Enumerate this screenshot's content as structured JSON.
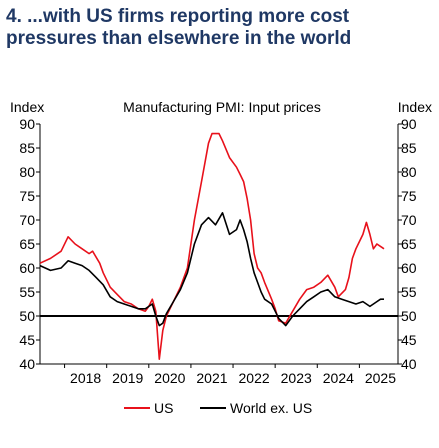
{
  "title_line1": "4. ...with US firms reporting more cost",
  "title_line2": "pressures than elsewhere in the world",
  "chart_data": {
    "type": "line",
    "title": "Manufacturing PMI: Input prices",
    "ylabel_left": "Index",
    "ylabel_right": "Index",
    "ylim": [
      40,
      90
    ],
    "yticks": [
      40,
      45,
      50,
      55,
      60,
      65,
      70,
      75,
      80,
      85,
      90
    ],
    "xlim": [
      "2017-06",
      "2025-12"
    ],
    "xticks": [
      "2018",
      "2019",
      "2020",
      "2021",
      "2022",
      "2023",
      "2024",
      "2025"
    ],
    "reference_line": 50,
    "grid": false,
    "legend_position": "bottom-center",
    "series": [
      {
        "name": "US",
        "color": "#e8111b",
        "points": [
          [
            "2017-06",
            61
          ],
          [
            "2017-09",
            62
          ],
          [
            "2017-12",
            63.5
          ],
          [
            "2018-02",
            66.5
          ],
          [
            "2018-04",
            65
          ],
          [
            "2018-06",
            64
          ],
          [
            "2018-08",
            63
          ],
          [
            "2018-09",
            63.5
          ],
          [
            "2018-11",
            61
          ],
          [
            "2018-12",
            59
          ],
          [
            "2019-02",
            56
          ],
          [
            "2019-04",
            54.5
          ],
          [
            "2019-06",
            53
          ],
          [
            "2019-08",
            52.5
          ],
          [
            "2019-10",
            51.5
          ],
          [
            "2019-12",
            51
          ],
          [
            "2020-01",
            52
          ],
          [
            "2020-02",
            53.5
          ],
          [
            "2020-03",
            51
          ],
          [
            "2020-04",
            41
          ],
          [
            "2020-05",
            47
          ],
          [
            "2020-06",
            50
          ],
          [
            "2020-08",
            53
          ],
          [
            "2020-10",
            56
          ],
          [
            "2020-12",
            60
          ],
          [
            "2021-02",
            70
          ],
          [
            "2021-04",
            78
          ],
          [
            "2021-06",
            86
          ],
          [
            "2021-07",
            88
          ],
          [
            "2021-09",
            88
          ],
          [
            "2021-10",
            86.5
          ],
          [
            "2021-12",
            83
          ],
          [
            "2022-02",
            81
          ],
          [
            "2022-03",
            79.5
          ],
          [
            "2022-04",
            78
          ],
          [
            "2022-05",
            74.5
          ],
          [
            "2022-06",
            70
          ],
          [
            "2022-07",
            63
          ],
          [
            "2022-08",
            60
          ],
          [
            "2022-09",
            59
          ],
          [
            "2022-10",
            57
          ],
          [
            "2022-12",
            53.5
          ],
          [
            "2023-01",
            51.5
          ],
          [
            "2023-02",
            49
          ],
          [
            "2023-04",
            48.5
          ],
          [
            "2023-06",
            51
          ],
          [
            "2023-08",
            53.5
          ],
          [
            "2023-10",
            55.5
          ],
          [
            "2023-12",
            56
          ],
          [
            "2024-02",
            57
          ],
          [
            "2024-04",
            58.5
          ],
          [
            "2024-06",
            56
          ],
          [
            "2024-07",
            54
          ],
          [
            "2024-09",
            55.5
          ],
          [
            "2024-10",
            58
          ],
          [
            "2024-11",
            62
          ],
          [
            "2024-12",
            64
          ],
          [
            "2025-01",
            65.5
          ],
          [
            "2025-02",
            67
          ],
          [
            "2025-03",
            69.5
          ],
          [
            "2025-04",
            67
          ],
          [
            "2025-05",
            64
          ],
          [
            "2025-06",
            65
          ],
          [
            "2025-07",
            64.5
          ],
          [
            "2025-08",
            64
          ]
        ]
      },
      {
        "name": "World ex. US",
        "color": "#000000",
        "points": [
          [
            "2017-06",
            60.5
          ],
          [
            "2017-09",
            59.5
          ],
          [
            "2017-12",
            60
          ],
          [
            "2018-02",
            61.5
          ],
          [
            "2018-04",
            61
          ],
          [
            "2018-06",
            60.5
          ],
          [
            "2018-08",
            59.5
          ],
          [
            "2018-10",
            58
          ],
          [
            "2018-12",
            56.5
          ],
          [
            "2019-02",
            54
          ],
          [
            "2019-04",
            53
          ],
          [
            "2019-06",
            52.5
          ],
          [
            "2019-08",
            52
          ],
          [
            "2019-10",
            51.5
          ],
          [
            "2019-12",
            51.5
          ],
          [
            "2020-01",
            52
          ],
          [
            "2020-02",
            52.5
          ],
          [
            "2020-03",
            50
          ],
          [
            "2020-04",
            48
          ],
          [
            "2020-05",
            48.5
          ],
          [
            "2020-06",
            50.5
          ],
          [
            "2020-08",
            53
          ],
          [
            "2020-10",
            55.5
          ],
          [
            "2020-12",
            59
          ],
          [
            "2021-02",
            65
          ],
          [
            "2021-04",
            69
          ],
          [
            "2021-06",
            70.5
          ],
          [
            "2021-08",
            69
          ],
          [
            "2021-10",
            71.5
          ],
          [
            "2021-12",
            67
          ],
          [
            "2022-02",
            68
          ],
          [
            "2022-03",
            70
          ],
          [
            "2022-04",
            68
          ],
          [
            "2022-05",
            65.5
          ],
          [
            "2022-06",
            62
          ],
          [
            "2022-07",
            59
          ],
          [
            "2022-08",
            57
          ],
          [
            "2022-09",
            55
          ],
          [
            "2022-10",
            53.5
          ],
          [
            "2022-12",
            52.5
          ],
          [
            "2023-01",
            51
          ],
          [
            "2023-02",
            49.5
          ],
          [
            "2023-04",
            48
          ],
          [
            "2023-06",
            50
          ],
          [
            "2023-08",
            51.5
          ],
          [
            "2023-10",
            53
          ],
          [
            "2023-12",
            54
          ],
          [
            "2024-02",
            55
          ],
          [
            "2024-04",
            55.5
          ],
          [
            "2024-06",
            54
          ],
          [
            "2024-08",
            53.5
          ],
          [
            "2024-10",
            53
          ],
          [
            "2024-12",
            52.5
          ],
          [
            "2025-02",
            53
          ],
          [
            "2025-04",
            52
          ],
          [
            "2025-05",
            52.5
          ],
          [
            "2025-06",
            53
          ],
          [
            "2025-07",
            53.5
          ],
          [
            "2025-08",
            53.5
          ]
        ]
      }
    ]
  }
}
